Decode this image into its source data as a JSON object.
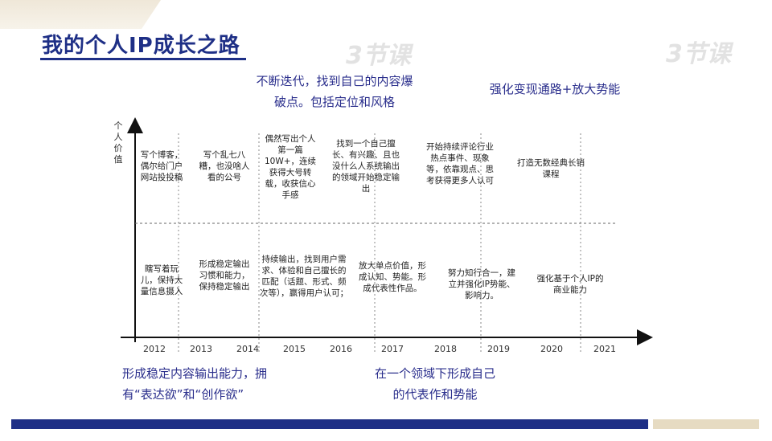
{
  "title": "我的个人IP成长之路",
  "watermark": "3节课",
  "annotations": {
    "top_center": "不断迭代，找到自己的内容爆破点。包括定位和风格",
    "top_right": "强化变现通路+放大势能",
    "bottom_left": "形成稳定内容输出能力，拥有“表达欲”和“创作欲”",
    "bottom_center": "在一个领域下形成自己的代表作和势能"
  },
  "y_axis_label": "个人价值",
  "years": [
    "2012",
    "2013",
    "2014",
    "2015",
    "2016",
    "2017",
    "2018",
    "2019",
    "2020",
    "2021"
  ],
  "upper_cells": [
    "写个博客，偶尔给门户网站投投稿",
    "写个乱七八糟，也没啥人看的公号",
    "偶然写出个人第一篇10W+，连续获得大号转载，收获信心手感",
    "找到一个自己擅长、有兴趣、且也没什么人系统输出的领域开始稳定输出",
    "开始持续评论行业热点事件、现象等，依靠观点、思考获得更多人认可",
    "打造无数经典长销课程"
  ],
  "lower_cells": [
    "瞎写着玩儿，保持大量信息摄入",
    "形成稳定输出习惯和能力，保持稳定输出",
    "持续输出，找到用户需求、体验和自己擅长的匹配（话题、形式、频次等），赢得用户认可；",
    "放大单点价值，形成认知、势能。形成代表性作品。",
    "努力知行合一，建立并强化IP势能、影响力。",
    "强化基于个人IP的商业能力"
  ]
}
